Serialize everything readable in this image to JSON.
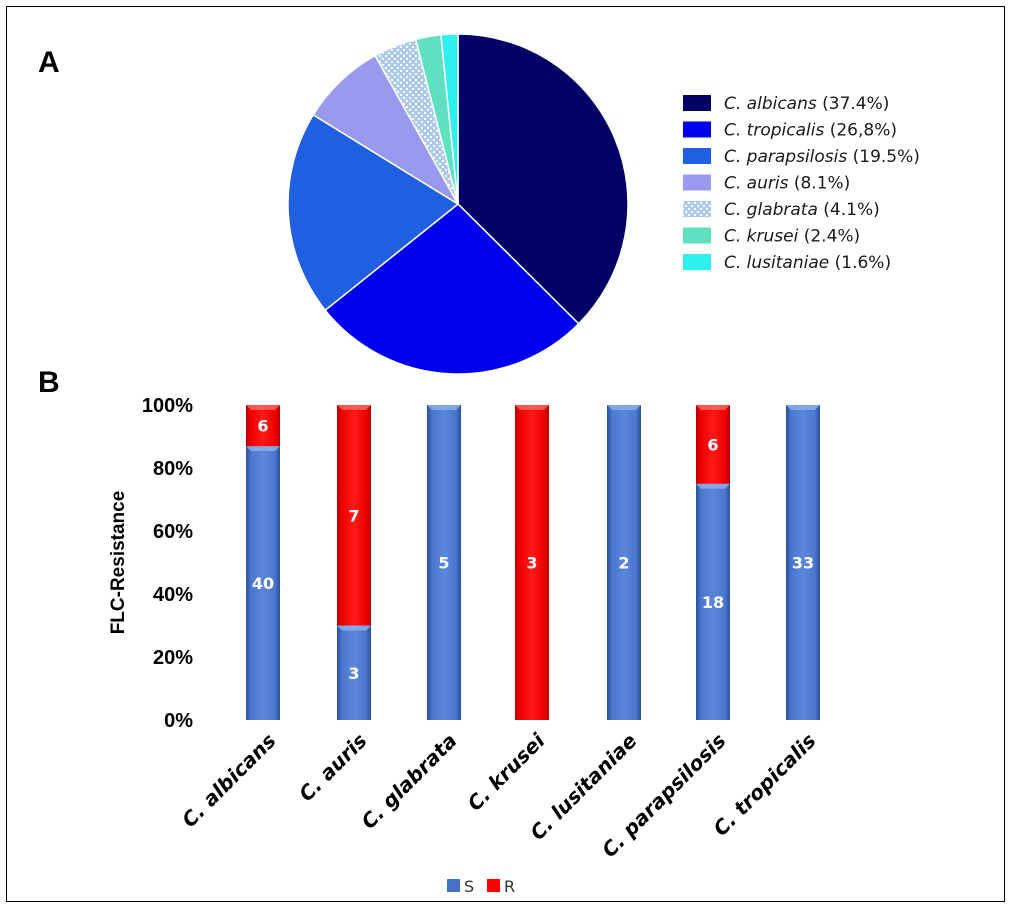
{
  "panels": {
    "a": "A",
    "b": "B"
  },
  "chart_data": [
    {
      "type": "pie",
      "slices": [
        {
          "species": "C. albicans",
          "pct_label": " (37.4%)",
          "value": 37.4,
          "color": "#010166"
        },
        {
          "species": "C. tropicalis",
          "pct_label": " (26,8%)",
          "value": 26.8,
          "color": "#0000ee"
        },
        {
          "species": "C. parapsilosis",
          "pct_label": " (19.5%)",
          "value": 19.5,
          "color": "#1f5fe0"
        },
        {
          "species": "C. auris",
          "pct_label": " (8.1%)",
          "value": 8.1,
          "color": "#9999ee"
        },
        {
          "species": "C. glabrata",
          "pct_label": " (4.1%)",
          "value": 4.1,
          "color": "#a9c8ee",
          "pattern": "dots"
        },
        {
          "species": "C. krusei",
          "pct_label": " (2.4%)",
          "value": 2.4,
          "color": "#5fe0c0"
        },
        {
          "species": "C. lusitaniae",
          "pct_label": " (1.6%)",
          "value": 1.6,
          "color": "#2ff0f0"
        }
      ],
      "legend_position": "right"
    },
    {
      "type": "bar",
      "stacked": "percent",
      "ylabel": "FLC-Resistance",
      "yticks": [
        "0%",
        "20%",
        "40%",
        "60%",
        "80%",
        "100%"
      ],
      "ylim": [
        0,
        100
      ],
      "categories": [
        "C. albicans",
        "C. auris",
        "C. glabrata",
        "C. krusei",
        "C. lusitaniae",
        "C. parapsilosis",
        "C. tropicalis"
      ],
      "series": [
        {
          "name": "S",
          "color": "#4472c4",
          "values": [
            40,
            3,
            5,
            0,
            2,
            18,
            33
          ]
        },
        {
          "name": "R",
          "color": "#ff0000",
          "values": [
            6,
            7,
            0,
            3,
            0,
            6,
            0
          ]
        }
      ],
      "legend_position": "bottom"
    }
  ]
}
